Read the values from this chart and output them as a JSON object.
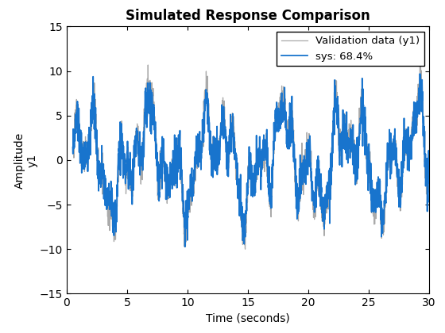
{
  "title": "Simulated Response Comparison",
  "xlabel": "Time (seconds)",
  "ylabel_top": "Amplitude",
  "ylabel_bottom": "y1",
  "legend1": "Validation data (y1)",
  "legend2": "sys: 68.4%",
  "xlim": [
    0.5,
    30
  ],
  "ylim": [
    -15,
    15
  ],
  "xticks": [
    0,
    5,
    10,
    15,
    20,
    25,
    30
  ],
  "yticks": [
    -15,
    -10,
    -5,
    0,
    5,
    10,
    15
  ],
  "color_val": "#aaaaaa",
  "color_sys": "#1874cd",
  "bg_color": "#ffffff",
  "title_fontsize": 12,
  "label_fontsize": 10,
  "tick_fontsize": 10,
  "legend_fontsize": 9.5,
  "linewidth_val": 0.9,
  "linewidth_sys": 1.3
}
